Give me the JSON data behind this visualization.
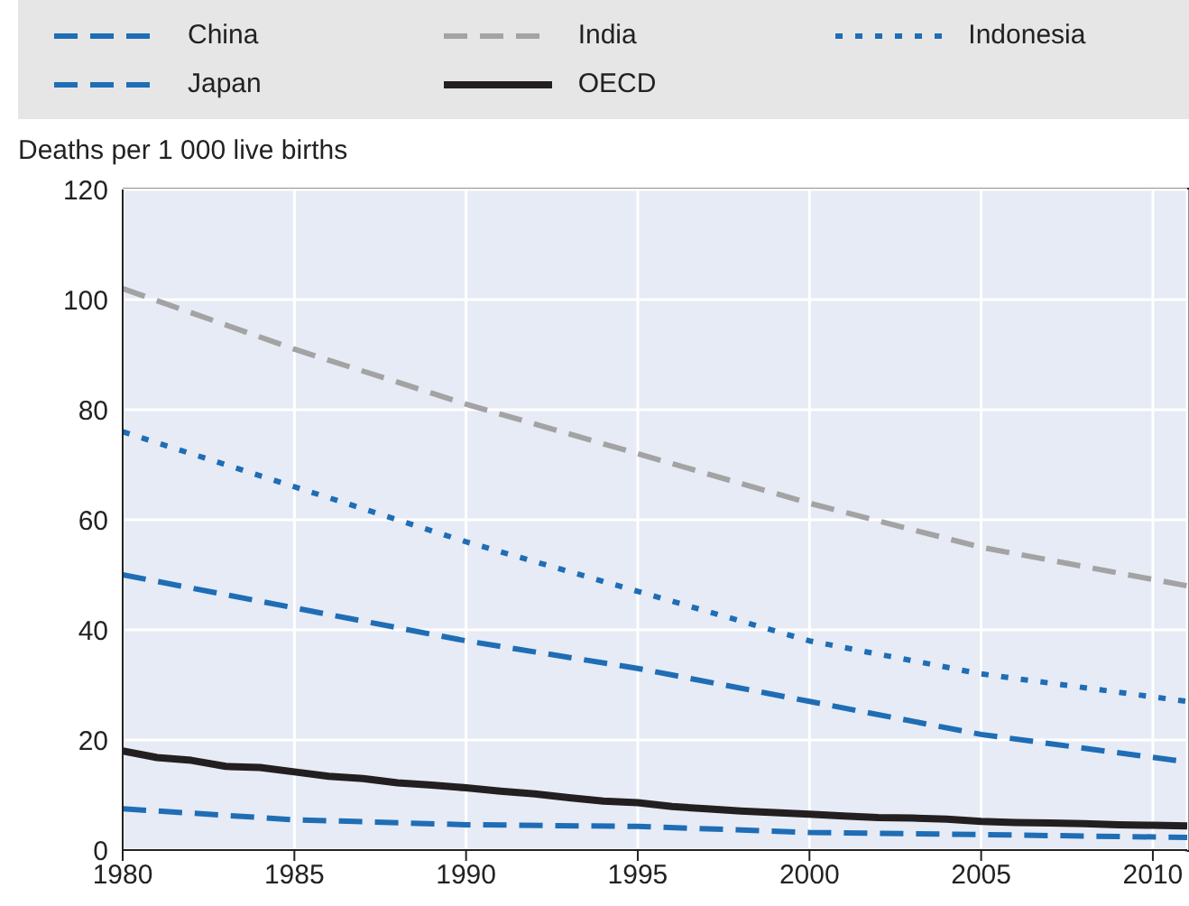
{
  "chart_data": {
    "type": "line",
    "ylabel": "Deaths per 1 000 live births",
    "xlim": [
      1980,
      2011
    ],
    "xticks": [
      1980,
      1985,
      1990,
      1995,
      2000,
      2005,
      2010
    ],
    "ylim": [
      0,
      120
    ],
    "yticks": [
      0,
      20,
      40,
      60,
      80,
      100,
      120
    ],
    "grid": true,
    "legend": "top",
    "marker": "none",
    "series": [
      {
        "name": "China",
        "color": "#1f6db5",
        "line_style": "dashed",
        "x": [
          1980,
          1985,
          1990,
          1995,
          2000,
          2005,
          2011
        ],
        "values": [
          50,
          44,
          38,
          33,
          27,
          21,
          16
        ]
      },
      {
        "name": "India",
        "color": "#a3a3a3",
        "line_style": "dashed",
        "x": [
          1980,
          1985,
          1990,
          1995,
          2000,
          2005,
          2011
        ],
        "values": [
          102,
          91,
          81,
          72,
          63,
          55,
          48
        ]
      },
      {
        "name": "Indonesia",
        "color": "#1f6db5",
        "line_style": "dotted",
        "x": [
          1980,
          1985,
          1990,
          1995,
          2000,
          2005,
          2011
        ],
        "values": [
          76,
          66,
          56,
          47,
          38,
          32,
          27
        ]
      },
      {
        "name": "Japan",
        "color": "#1f6db5",
        "line_style": "dashed",
        "x": [
          1980,
          1985,
          1990,
          1995,
          2000,
          2005,
          2011
        ],
        "values": [
          7.5,
          5.5,
          4.6,
          4.3,
          3.2,
          2.8,
          2.3
        ]
      },
      {
        "name": "OECD",
        "color": "#231f20",
        "line_style": "solid",
        "x": [
          1980,
          1981,
          1982,
          1983,
          1984,
          1985,
          1986,
          1987,
          1988,
          1989,
          1990,
          1991,
          1992,
          1993,
          1994,
          1995,
          1996,
          1997,
          1998,
          1999,
          2000,
          2001,
          2002,
          2003,
          2004,
          2005,
          2006,
          2007,
          2008,
          2009,
          2010,
          2011
        ],
        "values": [
          18,
          16.8,
          16.3,
          15.2,
          15,
          14.2,
          13.4,
          13,
          12.2,
          11.8,
          11.3,
          10.7,
          10.2,
          9.5,
          8.9,
          8.6,
          7.9,
          7.5,
          7.1,
          6.8,
          6.5,
          6.2,
          5.9,
          5.8,
          5.6,
          5.2,
          5,
          4.9,
          4.8,
          4.6,
          4.5,
          4.4
        ]
      }
    ]
  }
}
